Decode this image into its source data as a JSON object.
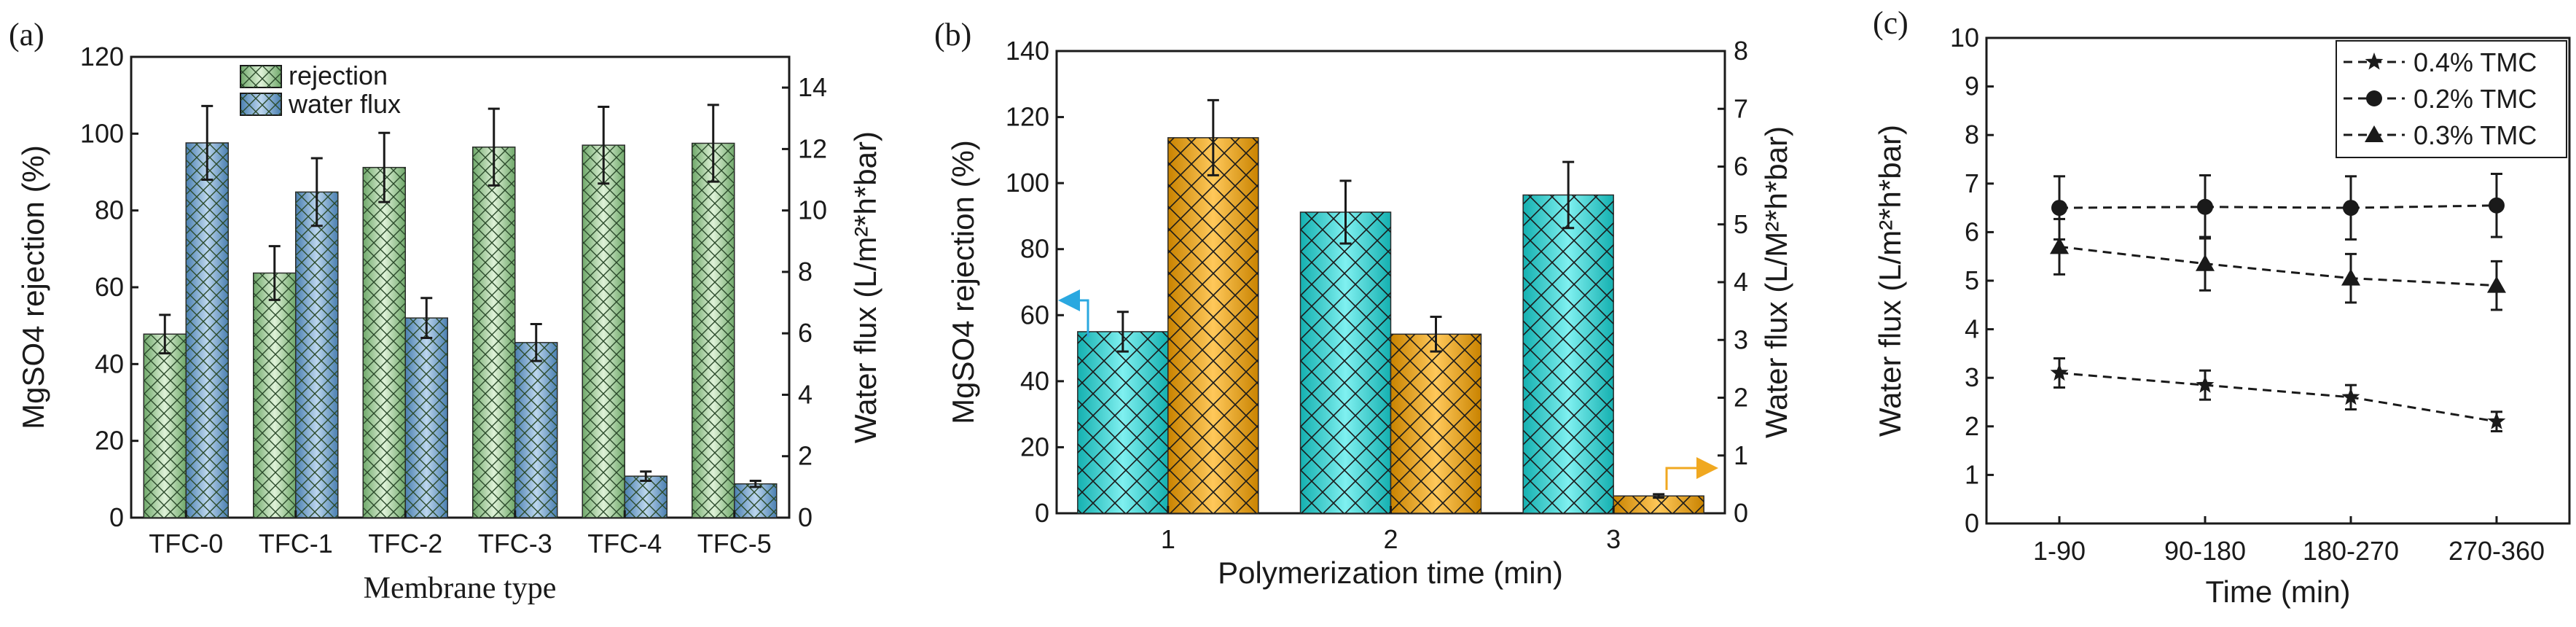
{
  "chart_data": [
    {
      "panel": "(a)",
      "type": "bar",
      "categories": [
        "TFC-0",
        "TFC-1",
        "TFC-2",
        "TFC-3",
        "TFC-4",
        "TFC-5"
      ],
      "xlabel": "Membrane type",
      "ylabel": "MgSO4 rejection (%)",
      "y2label": "Water flux (L/m²*h*bar)",
      "ylim": [
        0,
        120
      ],
      "yticks": [
        "0",
        "20",
        "40",
        "60",
        "80",
        "100",
        "120"
      ],
      "y2lim": [
        0,
        15
      ],
      "y2ticks": [
        "0",
        "2",
        "4",
        "6",
        "8",
        "10",
        "12",
        "14"
      ],
      "legend": [
        "rejection",
        "water flux"
      ],
      "legend_position": "top-left",
      "series": [
        {
          "name": "rejection",
          "axis": "left",
          "color": "#b7ddb0",
          "values": [
            47.8,
            63.7,
            91.2,
            96.5,
            97.0,
            97.5
          ],
          "errors": [
            5,
            7,
            9,
            10,
            10,
            10
          ]
        },
        {
          "name": "water flux",
          "axis": "right",
          "color": "#8fb4d6",
          "values": [
            12.2,
            10.6,
            6.5,
            5.7,
            1.35,
            1.1
          ],
          "errors": [
            1.2,
            1.1,
            0.65,
            0.6,
            0.15,
            0.1
          ]
        }
      ]
    },
    {
      "panel": "(b)",
      "type": "bar",
      "categories": [
        "1",
        "2",
        "3"
      ],
      "xlabel": "Polymerization time (min)",
      "ylabel": "MgSO4 rejection (%)",
      "y2label": "Water flux (L/M²*h*bar)",
      "ylim": [
        0,
        140
      ],
      "yticks": [
        "0",
        "20",
        "40",
        "60",
        "80",
        "100",
        "120",
        "140"
      ],
      "y2lim": [
        0,
        8
      ],
      "y2ticks": [
        "0",
        "1",
        "2",
        "3",
        "4",
        "5",
        "6",
        "7",
        "8"
      ],
      "series": [
        {
          "name": "MgSO4 rejection",
          "axis": "left",
          "color": "#3fd6d6",
          "values": [
            55,
            91.2,
            96.4
          ],
          "errors": [
            6,
            9.5,
            10
          ]
        },
        {
          "name": "Water flux",
          "axis": "right",
          "color": "#f0a820",
          "values": [
            6.5,
            3.1,
            0.3
          ],
          "errors": [
            0.65,
            0.3,
            0.03
          ]
        }
      ]
    },
    {
      "panel": "(c)",
      "type": "line",
      "categories": [
        "1-90",
        "90-180",
        "180-270",
        "270-360"
      ],
      "xlabel": "Time (min)",
      "ylabel": "Water flux (L/m²*h*bar)",
      "ylim": [
        0,
        10
      ],
      "yticks": [
        "0",
        "1",
        "2",
        "3",
        "4",
        "5",
        "6",
        "7",
        "8",
        "9",
        "10"
      ],
      "legend_position": "top-right",
      "series": [
        {
          "name": "0.4% TMC",
          "marker": "star",
          "values": [
            3.1,
            2.85,
            2.6,
            2.1
          ],
          "errors": [
            0.3,
            0.3,
            0.25,
            0.2
          ]
        },
        {
          "name": "0.2% TMC",
          "marker": "circle",
          "values": [
            6.5,
            6.52,
            6.5,
            6.55
          ],
          "errors": [
            0.65,
            0.65,
            0.65,
            0.65
          ]
        },
        {
          "name": "0.3% TMC",
          "marker": "triangle",
          "values": [
            5.7,
            5.35,
            5.05,
            4.9
          ],
          "errors": [
            0.57,
            0.55,
            0.5,
            0.5
          ]
        }
      ]
    }
  ]
}
